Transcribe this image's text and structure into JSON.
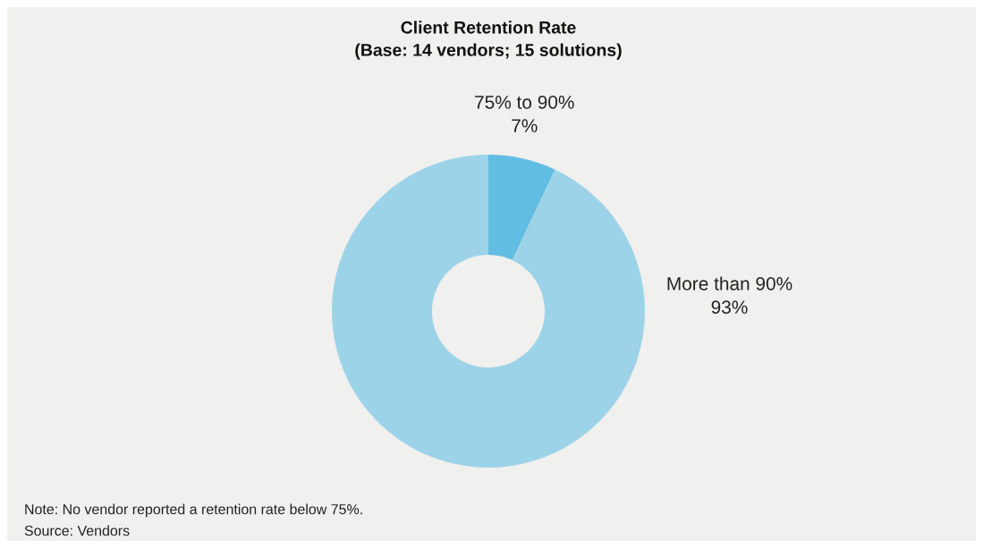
{
  "chart_data": {
    "type": "donut",
    "title": "Client Retention Rate\n(Base: 14 vendors; 15 solutions)",
    "categories": [
      "75% to 90%",
      "More than 90%"
    ],
    "values": [
      7,
      93
    ],
    "value_labels": [
      "7%",
      "93%"
    ],
    "colors": [
      "#62bde3",
      "#9dd3e8"
    ],
    "annotations": [
      "Note: No vendor reported a retention rate below 75%.",
      "Source: Vendors"
    ]
  }
}
